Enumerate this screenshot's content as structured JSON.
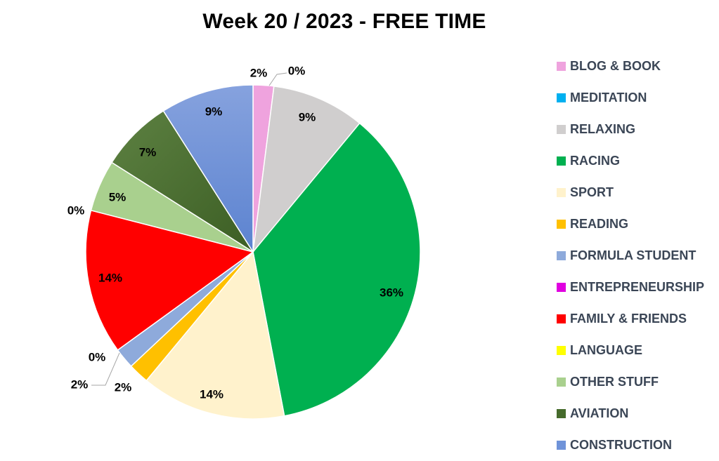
{
  "chart_data": {
    "type": "pie",
    "title": "Week 20 / 2023 - FREE TIME",
    "legend_position": "right",
    "slices": [
      {
        "name": "BLOG & BOOK",
        "value": 2,
        "label": "2%",
        "color": "#efa3de"
      },
      {
        "name": "MEDITATION",
        "value": 0,
        "label": "0%",
        "color": "#00b0f0"
      },
      {
        "name": "RELAXING",
        "value": 9,
        "label": "9%",
        "color": "#d0cece"
      },
      {
        "name": "RACING",
        "value": 36,
        "label": "36%",
        "color": "#00b050"
      },
      {
        "name": "SPORT",
        "value": 14,
        "label": "14%",
        "color": "#fff2cc"
      },
      {
        "name": "READING",
        "value": 2,
        "label": "2%",
        "color": "#ffc000"
      },
      {
        "name": "FORMULA STUDENT",
        "value": 2,
        "label": "2%",
        "color": "#8eaadb"
      },
      {
        "name": "ENTREPRENEURSHIP",
        "value": 0,
        "label": "0%",
        "color": "#e000e0"
      },
      {
        "name": "FAMILY & FRIENDS",
        "value": 14,
        "label": "14%",
        "color": "#ff0000"
      },
      {
        "name": "LANGUAGE",
        "value": 0,
        "label": "0%",
        "color": "#ffff00"
      },
      {
        "name": "OTHER STUFF",
        "value": 5,
        "label": "5%",
        "color": "#a9d08e"
      },
      {
        "name": "AVIATION",
        "value": 7,
        "label": "7%",
        "color": "#466b2c"
      },
      {
        "name": "CONSTRUCTION",
        "value": 9,
        "label": "9%",
        "color": "#6f93d9"
      }
    ]
  }
}
